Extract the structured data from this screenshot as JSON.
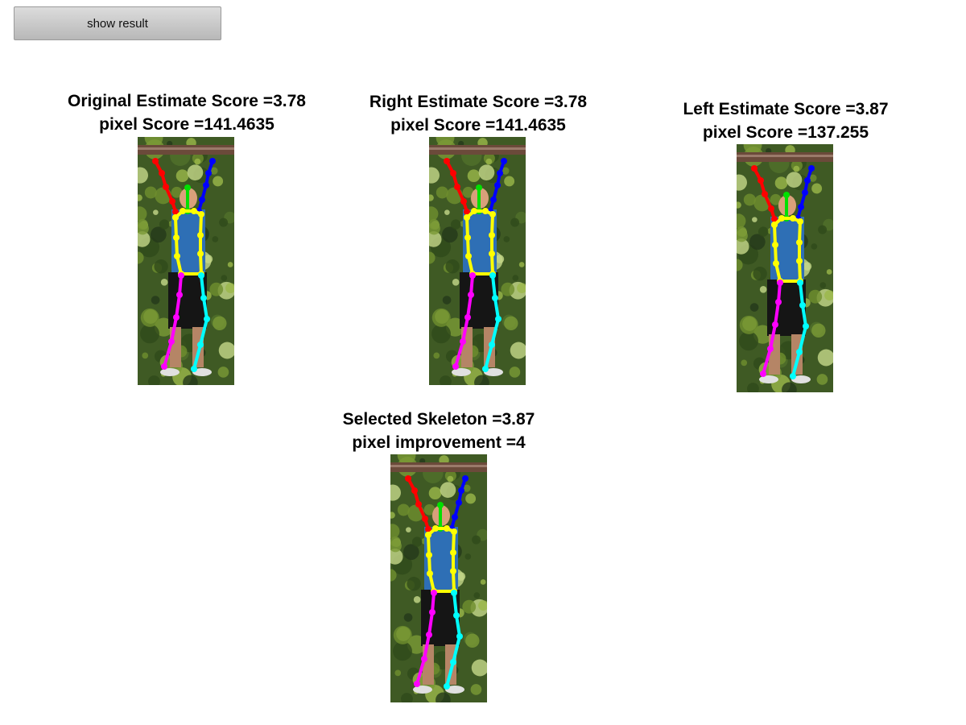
{
  "toolbar": {
    "show_result_label": "show result"
  },
  "panels": [
    {
      "id": "original",
      "title_line1": "Original Estimate Score =3.78",
      "title_line2": "pixel Score =141.4635"
    },
    {
      "id": "right",
      "title_line1": "Right Estimate Score =3.78",
      "title_line2": "pixel Score =141.4635"
    },
    {
      "id": "left",
      "title_line1": "Left Estimate Score =3.87",
      "title_line2": "pixel Score =137.255"
    },
    {
      "id": "selected",
      "title_line1": "Selected Skeleton =3.87",
      "title_line2": "pixel improvement =4"
    }
  ],
  "skeleton_colors": {
    "right_arm": "#ff0000",
    "left_arm": "#0000ff",
    "head": "#00e000",
    "torso": "#ffff00",
    "right_leg": "#ff00ff",
    "left_leg": "#00ffff"
  }
}
